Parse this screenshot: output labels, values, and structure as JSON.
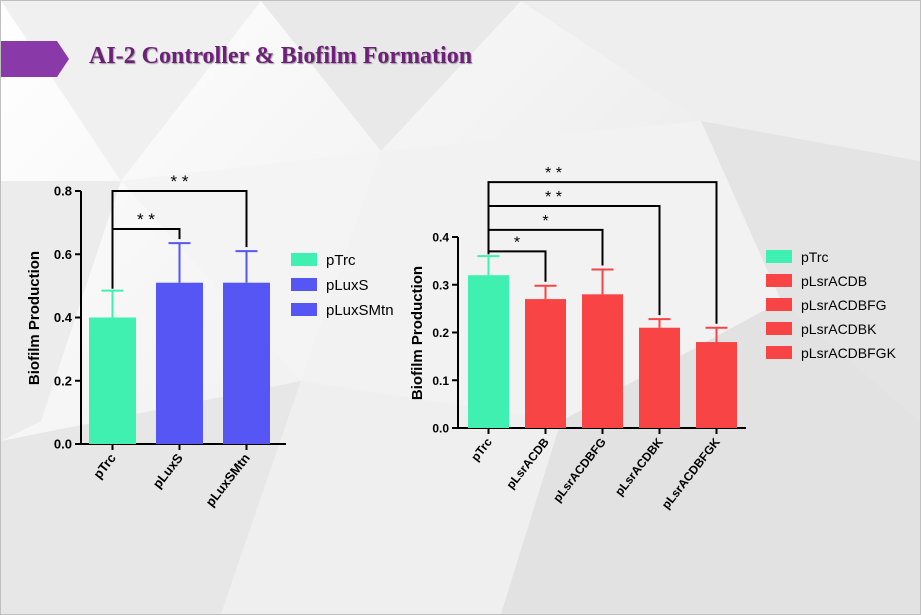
{
  "slide": {
    "title": "AI-2 Controller & Biofilm Formation",
    "accent_color": "#6e1f7a",
    "chevron_color": "#8a3aa8"
  },
  "chart_data": [
    {
      "type": "bar",
      "title": "",
      "ylabel": "Biofilm Production",
      "xlabel": "",
      "ylim": [
        0,
        0.8
      ],
      "yticks": [
        "0.0",
        "0.2",
        "0.4",
        "0.6",
        "0.8"
      ],
      "categories": [
        "pTrc",
        "pLuxS",
        "pLuxSMtn"
      ],
      "values": [
        0.4,
        0.51,
        0.51
      ],
      "errors": [
        0.085,
        0.125,
        0.1
      ],
      "colors": [
        "#40f0b0",
        "#5656f5",
        "#5656f5"
      ],
      "legend": {
        "position": "right",
        "entries": [
          {
            "label": "pTrc",
            "color": "#40f0b0"
          },
          {
            "label": "pLuxS",
            "color": "#5656f5"
          },
          {
            "label": "pLuxSMtn",
            "color": "#5656f5"
          }
        ]
      },
      "significance": [
        {
          "from": 0,
          "to": 1,
          "label": "* *",
          "level": 0.68
        },
        {
          "from": 0,
          "to": 2,
          "label": "* *",
          "level": 0.8
        }
      ],
      "grid": false
    },
    {
      "type": "bar",
      "title": "",
      "ylabel": "Biofilm Production",
      "xlabel": "",
      "ylim": [
        0,
        0.4
      ],
      "yticks": [
        "0.0",
        "0.1",
        "0.2",
        "0.3",
        "0.4"
      ],
      "categories": [
        "pTrc",
        "pLsrACDB",
        "pLsrACDBFG",
        "pLsrACDBK",
        "pLsrACDBFGK"
      ],
      "values": [
        0.32,
        0.27,
        0.28,
        0.21,
        0.18
      ],
      "errors": [
        0.04,
        0.028,
        0.052,
        0.018,
        0.03
      ],
      "colors": [
        "#40f0b0",
        "#f84444",
        "#f84444",
        "#f84444",
        "#f84444"
      ],
      "legend": {
        "position": "right",
        "entries": [
          {
            "label": "pTrc",
            "color": "#40f0b0"
          },
          {
            "label": "pLsrACDB",
            "color": "#f84444"
          },
          {
            "label": "pLsrACDBFG",
            "color": "#f84444"
          },
          {
            "label": "pLsrACDBK",
            "color": "#f84444"
          },
          {
            "label": "pLsrACDBFGK",
            "color": "#f84444"
          }
        ]
      },
      "significance": [
        {
          "from": 0,
          "to": 1,
          "label": "*",
          "level": 0.37
        },
        {
          "from": 0,
          "to": 2,
          "label": "*",
          "level": 0.415
        },
        {
          "from": 0,
          "to": 3,
          "label": "* *",
          "level": 0.465
        },
        {
          "from": 0,
          "to": 4,
          "label": "* *",
          "level": 0.515
        }
      ],
      "grid": false
    }
  ]
}
